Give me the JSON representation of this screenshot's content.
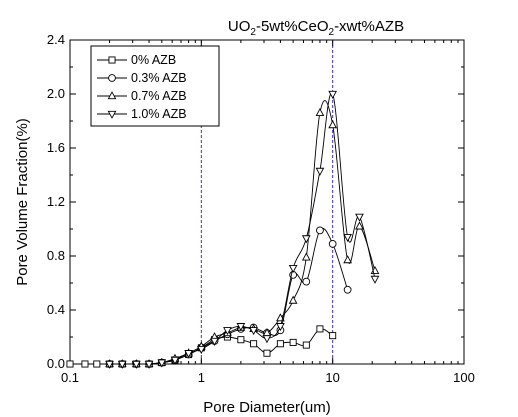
{
  "chart_data": {
    "type": "scatter",
    "title_parts": [
      "UO",
      "2",
      "-5wt%CeO",
      "2",
      "-xwt%AZB"
    ],
    "xlabel": "Pore Diameter(um)",
    "ylabel": "Pore Volume Fraction(%)",
    "xscale": "log",
    "xlim": [
      0.1,
      100
    ],
    "ylim": [
      0.0,
      2.4
    ],
    "xticks": [
      0.1,
      1,
      10,
      100
    ],
    "xtick_labels": [
      "0.1",
      "1",
      "10",
      "100"
    ],
    "yticks": [
      0.0,
      0.4,
      0.8,
      1.2,
      1.6,
      2.0,
      2.4
    ],
    "ytick_labels": [
      "0.0",
      "0.4",
      "0.8",
      "1.2",
      "1.6",
      "2.0",
      "2.4"
    ],
    "reference_lines_x": [
      1,
      10
    ],
    "reference_line_color": "#3333cc",
    "grid": false,
    "legend_position": "top-left",
    "series": [
      {
        "name": "0% AZB",
        "marker": "square",
        "x": [
          0.1,
          0.13,
          0.16,
          0.2,
          0.25,
          0.32,
          0.4,
          0.5,
          0.63,
          0.8,
          1.0,
          1.26,
          1.58,
          2.0,
          2.5,
          3.16,
          4.0,
          5.0,
          6.3,
          8.0,
          10.0
        ],
        "y": [
          0.0,
          0.0,
          0.0,
          0.0,
          0.0,
          0.0,
          0.0,
          0.01,
          0.03,
          0.07,
          0.12,
          0.18,
          0.2,
          0.18,
          0.15,
          0.08,
          0.15,
          0.16,
          0.14,
          0.26,
          0.21
        ]
      },
      {
        "name": "0.3% AZB",
        "marker": "circle",
        "x": [
          0.2,
          0.25,
          0.32,
          0.4,
          0.5,
          0.63,
          0.8,
          1.0,
          1.26,
          1.58,
          2.0,
          2.5,
          3.16,
          4.0,
          5.0,
          6.3,
          8.0,
          10.0,
          13.0
        ],
        "y": [
          0.0,
          0.0,
          0.0,
          0.0,
          0.01,
          0.03,
          0.07,
          0.12,
          0.17,
          0.22,
          0.26,
          0.27,
          0.23,
          0.25,
          0.66,
          0.61,
          0.99,
          0.89,
          0.55
        ]
      },
      {
        "name": "0.7% AZB",
        "marker": "triangle-up",
        "x": [
          0.2,
          0.25,
          0.32,
          0.4,
          0.5,
          0.63,
          0.8,
          1.0,
          1.26,
          1.58,
          2.0,
          2.5,
          3.16,
          4.0,
          5.0,
          6.3,
          8.0,
          10.0,
          13.0,
          16.0,
          21.0
        ],
        "y": [
          0.0,
          0.0,
          0.0,
          0.0,
          0.01,
          0.04,
          0.08,
          0.13,
          0.2,
          0.23,
          0.27,
          0.26,
          0.23,
          0.34,
          0.47,
          0.79,
          1.86,
          1.77,
          0.77,
          1.02,
          0.69
        ]
      },
      {
        "name": "1.0% AZB",
        "marker": "triangle-down",
        "x": [
          0.2,
          0.25,
          0.32,
          0.4,
          0.5,
          0.63,
          0.8,
          1.0,
          1.26,
          1.58,
          2.0,
          2.5,
          3.16,
          4.0,
          5.0,
          6.3,
          8.0,
          10.0,
          13.0,
          16.0,
          21.0
        ],
        "y": [
          0.0,
          0.0,
          0.0,
          0.0,
          0.01,
          0.03,
          0.08,
          0.11,
          0.17,
          0.25,
          0.28,
          0.25,
          0.19,
          0.28,
          0.71,
          0.93,
          1.43,
          2.0,
          0.94,
          1.09,
          0.63
        ]
      }
    ]
  }
}
